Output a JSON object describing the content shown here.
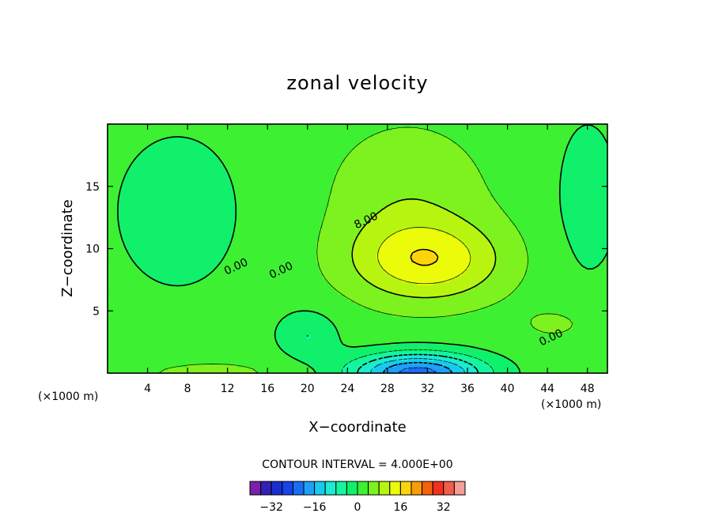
{
  "chart_data": {
    "type": "heatmap",
    "title": "zonal velocity",
    "xlabel": "X−coordinate",
    "ylabel": "Z−coordinate",
    "x_unit_left": "(×1000 m)",
    "x_unit_right": "(×1000 m)",
    "xlim": [
      0,
      50
    ],
    "ylim": [
      0,
      20
    ],
    "x_ticks": [
      4,
      8,
      12,
      16,
      20,
      24,
      28,
      32,
      36,
      40,
      44,
      48
    ],
    "y_ticks": [
      5,
      10,
      15
    ],
    "contour_interval_text": "CONTOUR INTERVAL = 4.000E+00",
    "contour_interval": 4,
    "contour_labels": [
      {
        "text": "0.00",
        "x": 13.0,
        "y": 8.3
      },
      {
        "text": "0.00",
        "x": 17.5,
        "y": 8.0
      },
      {
        "text": "8.00",
        "x": 26.0,
        "y": 12.0
      },
      {
        "text": "0.00",
        "x": 44.5,
        "y": 2.6
      }
    ],
    "features": [
      {
        "kind": "jet-max",
        "x": 32,
        "z": 9,
        "approx_value": 14
      },
      {
        "kind": "jet-min",
        "x": 31,
        "z": 0.5,
        "approx_value": -22
      }
    ],
    "colorbar": {
      "ticks": [
        -32,
        -16,
        0,
        16,
        32
      ],
      "levels": [
        -36,
        -32,
        -28,
        -24,
        -20,
        -16,
        -12,
        -8,
        -4,
        0,
        4,
        8,
        12,
        16,
        20,
        24,
        28,
        32,
        36
      ],
      "colors": [
        "#7b1fa8",
        "#3320b4",
        "#1a2ed0",
        "#1544e8",
        "#1a6cf5",
        "#1ea0f8",
        "#19c9ef",
        "#1aebd2",
        "#14f5a2",
        "#10f06a",
        "#3df032",
        "#7df21e",
        "#b7f511",
        "#ecfb0a",
        "#fbd409",
        "#f99b0a",
        "#f5620d",
        "#f2311c",
        "#f25c4c",
        "#f59e99"
      ]
    }
  }
}
